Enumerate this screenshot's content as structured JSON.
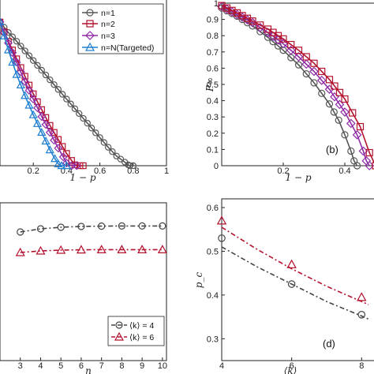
{
  "chart_data": [
    {
      "panel": "a",
      "type": "line",
      "xlabel": "1 − p",
      "ylabel": "",
      "xlim": [
        0.0,
        1.0
      ],
      "ylim": [
        0.0,
        1.0
      ],
      "xticks": [
        "0.2",
        "0.4",
        "0.6",
        "0.8",
        "1"
      ],
      "yticks": [],
      "legend": {
        "placement": "top-right",
        "entries": [
          "n=1",
          "n=2",
          "n=3",
          "n=N(Targeted)"
        ]
      },
      "series": [
        {
          "name": "n=1",
          "color": "#555555",
          "marker": "circle",
          "x": [
            0.0,
            0.05,
            0.1,
            0.15,
            0.2,
            0.25,
            0.3,
            0.35,
            0.4,
            0.45,
            0.5,
            0.55,
            0.6,
            0.65,
            0.7,
            0.75,
            0.77,
            0.78,
            0.8
          ],
          "y": [
            0.82,
            0.76,
            0.71,
            0.655,
            0.6,
            0.545,
            0.49,
            0.435,
            0.38,
            0.325,
            0.27,
            0.215,
            0.16,
            0.105,
            0.055,
            0.02,
            0.005,
            0.0,
            0.0
          ]
        },
        {
          "name": "n=2",
          "color": "#b3122e",
          "marker": "square",
          "x": [
            0.0,
            0.05,
            0.1,
            0.15,
            0.2,
            0.25,
            0.3,
            0.35,
            0.4,
            0.43,
            0.45,
            0.48,
            0.5
          ],
          "y": [
            0.82,
            0.71,
            0.61,
            0.51,
            0.41,
            0.32,
            0.23,
            0.15,
            0.07,
            0.03,
            0.005,
            0.0,
            0.0
          ]
        },
        {
          "name": "n=3",
          "color": "#8e2aa6",
          "marker": "diamond",
          "x": [
            0.0,
            0.05,
            0.1,
            0.15,
            0.2,
            0.25,
            0.3,
            0.35,
            0.38,
            0.4,
            0.43,
            0.46
          ],
          "y": [
            0.82,
            0.7,
            0.59,
            0.48,
            0.38,
            0.28,
            0.19,
            0.1,
            0.05,
            0.015,
            0.0,
            0.0
          ]
        },
        {
          "name": "n=N(Targeted)",
          "color": "#1f7fd1",
          "marker": "triangle",
          "x": [
            0.0,
            0.05,
            0.1,
            0.15,
            0.2,
            0.25,
            0.3,
            0.33,
            0.35,
            0.37,
            0.4
          ],
          "y": [
            0.82,
            0.66,
            0.52,
            0.4,
            0.29,
            0.19,
            0.09,
            0.04,
            0.01,
            0.0,
            0.0
          ]
        }
      ]
    },
    {
      "panel": "b",
      "label": "(b)",
      "type": "line",
      "xlabel": "1 − p",
      "ylabel": "P∞",
      "xlim": [
        0.0,
        0.5
      ],
      "ylim": [
        0.0,
        1.0
      ],
      "xticks": [
        "0.2",
        "0.4"
      ],
      "yticks": [
        "0",
        "0.1",
        "0.2",
        "0.3",
        "0.4",
        "0.5",
        "0.6",
        "0.7",
        "0.8",
        "0.9",
        "1"
      ],
      "series": [
        {
          "color": "#555555",
          "marker": "circle",
          "x": [
            0.0,
            0.05,
            0.1,
            0.15,
            0.2,
            0.25,
            0.3,
            0.35,
            0.38,
            0.4,
            0.42,
            0.43,
            0.44
          ],
          "y": [
            0.97,
            0.92,
            0.86,
            0.79,
            0.71,
            0.62,
            0.51,
            0.38,
            0.28,
            0.19,
            0.09,
            0.03,
            0.0
          ]
        },
        {
          "color": "#8e2aa6",
          "marker": "diamond",
          "x": [
            0.0,
            0.05,
            0.1,
            0.15,
            0.2,
            0.25,
            0.3,
            0.35,
            0.4,
            0.44,
            0.46,
            0.47,
            0.48
          ],
          "y": [
            0.98,
            0.93,
            0.88,
            0.82,
            0.75,
            0.67,
            0.58,
            0.47,
            0.33,
            0.19,
            0.09,
            0.03,
            0.0
          ]
        },
        {
          "color": "#b3122e",
          "marker": "square",
          "x": [
            0.0,
            0.05,
            0.1,
            0.15,
            0.2,
            0.25,
            0.3,
            0.35,
            0.4,
            0.45,
            0.48,
            0.5
          ],
          "y": [
            0.985,
            0.94,
            0.89,
            0.84,
            0.78,
            0.71,
            0.63,
            0.53,
            0.41,
            0.24,
            0.08,
            0.0
          ]
        }
      ]
    },
    {
      "panel": "c",
      "type": "line",
      "xlabel": "n",
      "ylabel": "",
      "xlim": [
        2.0,
        10.0
      ],
      "ylim": [
        0.0,
        1.0
      ],
      "xticks": [
        "3",
        "4",
        "5",
        "6",
        "7",
        "8",
        "9",
        "10"
      ],
      "yticks": [],
      "legend": {
        "placement": "bottom-right",
        "entries": [
          "⟨k⟩ = 4",
          "⟨k⟩ = 6"
        ]
      },
      "series": [
        {
          "name": "⟨k⟩ = 4",
          "color": "#444444",
          "marker": "circle",
          "x": [
            3,
            4,
            5,
            6,
            7,
            8,
            9,
            10
          ],
          "y": [
            0.815,
            0.835,
            0.845,
            0.85,
            0.852,
            0.853,
            0.853,
            0.853
          ]
        },
        {
          "name": "⟨k⟩ = 6",
          "color": "#b3122e",
          "marker": "triangle",
          "x": [
            3,
            4,
            5,
            6,
            7,
            8,
            9,
            10
          ],
          "y": [
            0.685,
            0.695,
            0.7,
            0.702,
            0.703,
            0.703,
            0.703,
            0.703
          ]
        }
      ]
    },
    {
      "panel": "d",
      "label": "(d)",
      "type": "line",
      "xlabel": "⟨k⟩",
      "ylabel": "p_c",
      "xlim": [
        4,
        8
      ],
      "ylim": [
        0.3,
        0.6
      ],
      "xticks": [
        "4",
        "6",
        "8"
      ],
      "yticks": [
        "0.3",
        "0.4",
        "0.5",
        "0.6"
      ],
      "series": [
        {
          "color": "#444444",
          "marker": "circle",
          "x": [
            4,
            6,
            8
          ],
          "y": [
            0.53,
            0.425,
            0.355
          ],
          "fit_x": [
            4,
            5,
            6,
            7,
            8,
            8.2
          ],
          "fit_y": [
            0.51,
            0.465,
            0.425,
            0.385,
            0.352,
            0.345
          ]
        },
        {
          "color": "#b3122e",
          "marker": "triangle",
          "x": [
            4,
            6,
            8
          ],
          "y": [
            0.57,
            0.47,
            0.395
          ],
          "fit_x": [
            4,
            5,
            6,
            7,
            8,
            8.2
          ],
          "fit_y": [
            0.555,
            0.505,
            0.46,
            0.42,
            0.385,
            0.378
          ]
        }
      ]
    }
  ]
}
